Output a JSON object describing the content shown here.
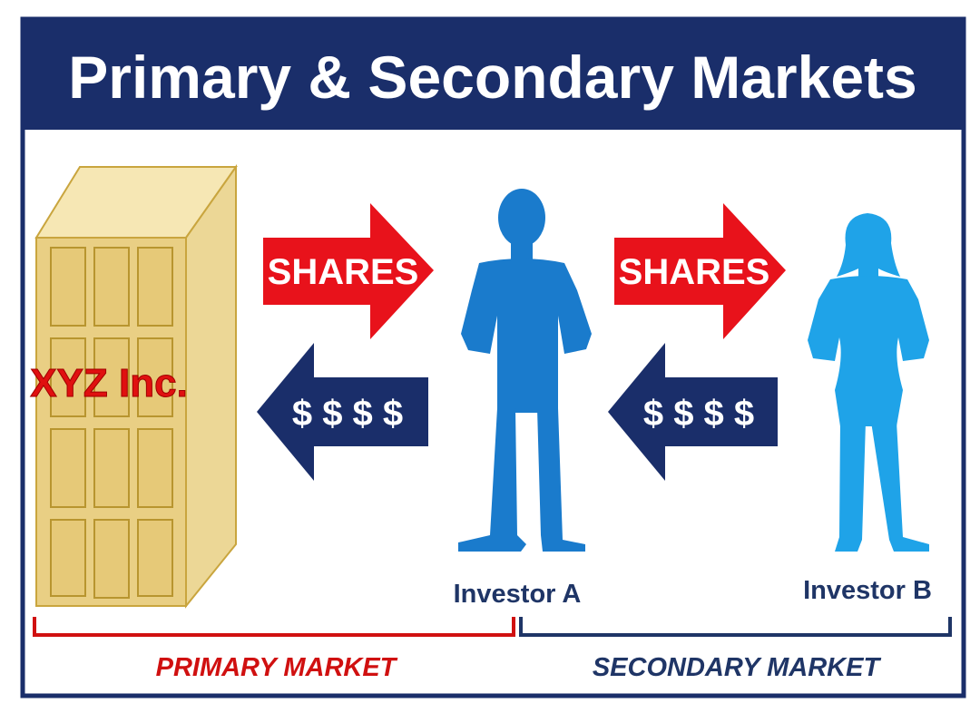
{
  "title": "Primary & Secondary Markets",
  "company": {
    "name": "XYZ Inc."
  },
  "flows": [
    {
      "shares_label": "SHARES",
      "money_label": "$ $ $ $"
    },
    {
      "shares_label": "SHARES",
      "money_label": "$ $ $ $"
    }
  ],
  "investors": [
    {
      "name": "Investor A"
    },
    {
      "name": "Investor B"
    }
  ],
  "markets": {
    "primary": "PRIMARY MARKET",
    "secondary": "SECONDARY MARKET"
  },
  "colors": {
    "navy": "#1a2e6a",
    "red": "#e8121b",
    "blue_investor_a": "#1a7bcc",
    "blue_investor_b": "#1fa3e8",
    "building": "#e9cf84",
    "market_primary": "#d01010",
    "market_secondary": "#1f3566"
  }
}
